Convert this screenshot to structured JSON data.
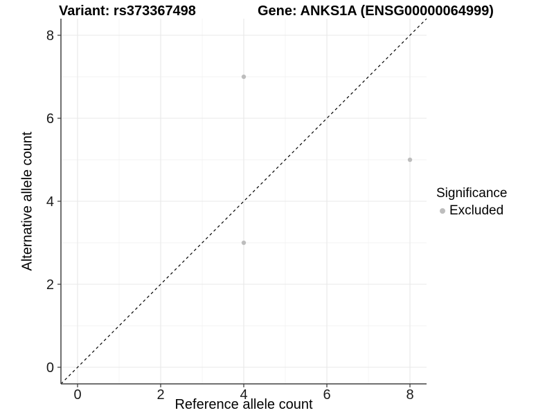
{
  "chart_data": {
    "type": "scatter",
    "title_left": "Variant: rs373367498",
    "title_right": "Gene: ANKS1A (ENSG00000064999)",
    "xlabel": "Reference allele count",
    "ylabel": "Alternative allele count",
    "xlim": [
      -0.4,
      8.4
    ],
    "ylim": [
      -0.4,
      8.4
    ],
    "xticks": [
      0,
      2,
      4,
      6,
      8
    ],
    "yticks": [
      0,
      2,
      4,
      6,
      8
    ],
    "minor_xticks": [
      1,
      3,
      5,
      7
    ],
    "minor_yticks": [
      1,
      3,
      5,
      7
    ],
    "grid_on": true,
    "series": [
      {
        "name": "Excluded",
        "color": "#bdbdbd",
        "points": [
          {
            "x": 4,
            "y": 7
          },
          {
            "x": 8,
            "y": 5
          },
          {
            "x": 4,
            "y": 3
          }
        ]
      }
    ],
    "identity_line": {
      "style": "dashed",
      "color": "#000000",
      "x0": -0.4,
      "y0": -0.4,
      "x1": 8.4,
      "y1": 8.4
    },
    "legend": {
      "position": "right",
      "title": "Significance",
      "items": [
        {
          "label": "Excluded",
          "color": "#bdbdbd"
        }
      ]
    },
    "colors": {
      "major_grid": "#e8e8e8",
      "minor_grid": "#f3f3f3",
      "axis_line": "#404040",
      "tick_text": "#1a1a1a",
      "background": "#ffffff"
    }
  }
}
